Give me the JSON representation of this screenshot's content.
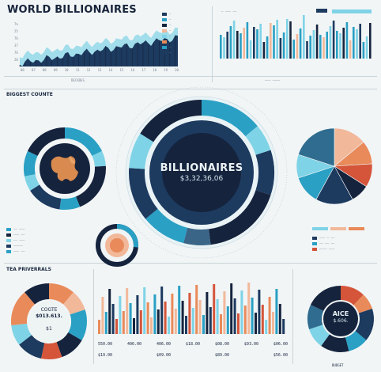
{
  "header": {
    "title": "WORLD BILLIONAIRES"
  },
  "center": {
    "heading": "BILLIONAIRES",
    "value": "$3,32,36,06"
  },
  "sections": {
    "countries_title": "BIGGEST COUNTE",
    "top_title": "TEA PRIVERRALS",
    "bottom_left_center_top": "COGTE",
    "bottom_left_center_value": "$013.613.",
    "bottom_left_center_bottom": "$1",
    "age_title": "AICE",
    "age_value": "$.606.",
    "age_footer": "BUDGET"
  },
  "bottom_row_values": [
    "550.00",
    "406.00",
    "406.00",
    "$18.00",
    "$08.00",
    "$93.00",
    "$06.00",
    "$19.00",
    "$09.00",
    "$89.00",
    "$56.00"
  ],
  "colors": {
    "navy": "#15233d",
    "deep": "#1d3a5f",
    "teal": "#2aa0c4",
    "cyan": "#7fd3e6",
    "orange": "#e98a5a",
    "peach": "#f2b89a",
    "red": "#d4553a",
    "bg": "#f1f5f6"
  }
}
